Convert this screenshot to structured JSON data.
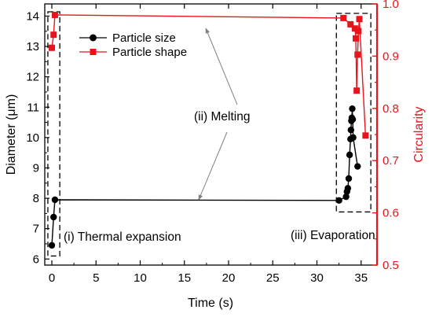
{
  "chart_data": {
    "type": "line",
    "title": "",
    "xlabel": "Time (s)",
    "ylabel_left": "Diameter (μm)",
    "ylabel_right": "Circularity",
    "xlim": [
      -0.8,
      36.8
    ],
    "ylim_left": [
      5.8,
      14.4
    ],
    "ylim_right": [
      0.5,
      1.0
    ],
    "x_ticks": [
      0,
      5,
      10,
      15,
      20,
      25,
      30,
      35
    ],
    "x_tick_labels": [
      "0",
      "5",
      "10",
      "15",
      "20",
      "25",
      "30",
      "35"
    ],
    "y_left_ticks": [
      6,
      7,
      8,
      9,
      10,
      11,
      12,
      13,
      14
    ],
    "y_left_tick_labels": [
      "6",
      "7",
      "8",
      "9",
      "10",
      "11",
      "12",
      "13",
      "14"
    ],
    "y_right_ticks": [
      0.5,
      0.6,
      0.7,
      0.8,
      0.9,
      1.0
    ],
    "y_right_tick_labels": [
      "0.5",
      "0.6",
      "0.7",
      "0.8",
      "0.9",
      "1.0"
    ],
    "grid": false,
    "legend_position": "top-left",
    "series": [
      {
        "name": "Particle size",
        "axis": "left",
        "color": "#000000",
        "marker": "circle",
        "x": [
          0.0,
          0.2,
          0.35,
          32.5,
          33.3,
          33.4,
          33.5,
          33.6,
          33.7,
          33.8,
          33.85,
          33.9,
          33.95,
          34.0,
          34.05,
          34.1,
          34.6
        ],
        "y": [
          6.45,
          7.38,
          7.95,
          7.93,
          8.05,
          8.22,
          8.33,
          8.65,
          9.43,
          9.95,
          10.25,
          10.55,
          10.65,
          10.95,
          10.6,
          10.0,
          9.05
        ]
      },
      {
        "name": "Particle shape",
        "axis": "right",
        "color": "#e8141b",
        "marker": "square",
        "x": [
          0.0,
          0.2,
          0.35,
          33.0,
          33.8,
          34.3,
          34.4,
          34.5,
          34.6,
          34.7,
          34.8,
          35.5
        ],
        "y": [
          0.916,
          0.941,
          0.979,
          0.973,
          0.961,
          0.953,
          0.934,
          0.834,
          0.903,
          0.948,
          0.971,
          0.748
        ]
      }
    ],
    "annotations": [
      {
        "text": "(i) Thermal expansion"
      },
      {
        "text": "(ii) Melting"
      },
      {
        "text": "(iii) Evaporation"
      }
    ]
  }
}
